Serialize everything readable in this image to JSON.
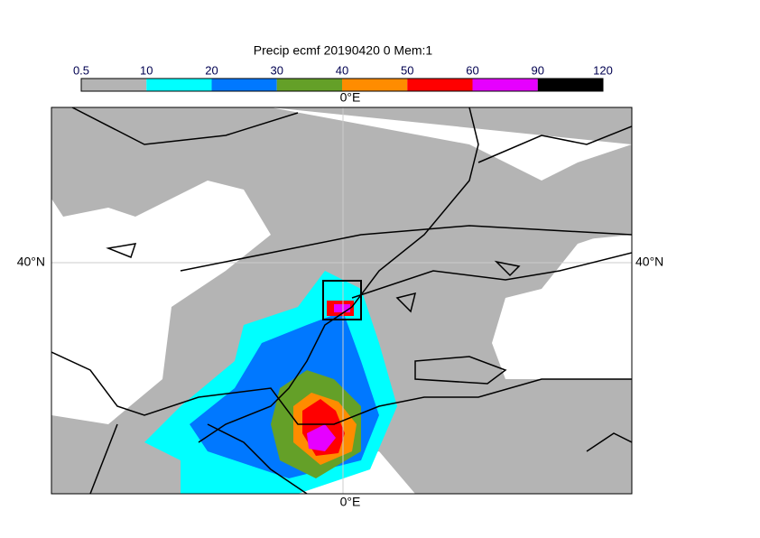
{
  "title": "Precip ecmf 20190420 0 Mem:1",
  "colorbar": {
    "bounds": [
      0.5,
      10,
      20,
      30,
      40,
      50,
      60,
      90,
      120
    ],
    "colors": [
      "#b4b4b4",
      "#00ffff",
      "#0078ff",
      "#64a028",
      "#ff8c00",
      "#ff0000",
      "#e600ff",
      "#000000"
    ]
  },
  "labels": {
    "lon_top": "0°E",
    "lon_bottom": "0°E",
    "lat_left": "40°N",
    "lat_right": "40°N"
  }
}
